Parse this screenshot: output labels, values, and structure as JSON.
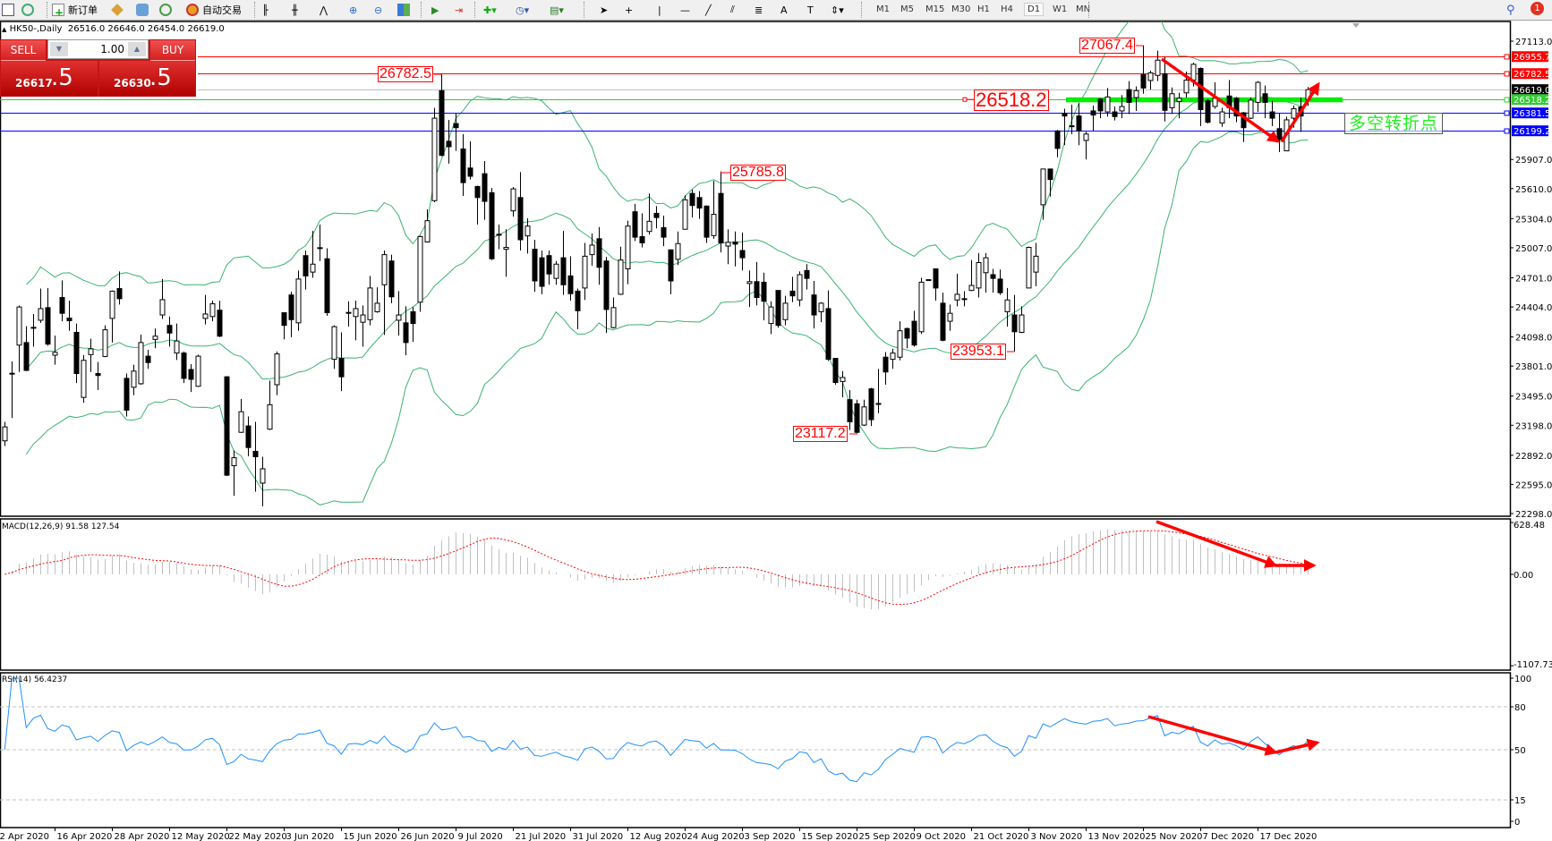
{
  "toolbar": {
    "new_order": "新订单",
    "auto_trading": "自动交易",
    "timeframes": [
      "M1",
      "M5",
      "M15",
      "M30",
      "H1",
      "H4",
      "D1",
      "W1",
      "MN"
    ],
    "active_timeframe": "D1",
    "notification_count": "1"
  },
  "chart": {
    "symbol": "HK50-,Daily",
    "ohlc": "26516.0 26646.0 26454.0 26619.0"
  },
  "trade_panel": {
    "sell_label": "SELL",
    "buy_label": "BUY",
    "lot": "1.00",
    "sell_price_main": "26617",
    "sell_price_frac": ".5",
    "buy_price_main": "26630",
    "buy_price_frac": ".5"
  },
  "annotation_text": "多空转折点",
  "colors": {
    "bull": "#ffffff",
    "bear": "#000000",
    "bollinger": "#3cb371",
    "macd_hist": "#c0c0c0",
    "macd_signal": "#ff0000",
    "rsi": "#1e90ff",
    "arrow": "#ff0000",
    "panel": "#c41414"
  },
  "chart_data": {
    "type": "candlestick",
    "price_range": [
      22298,
      27113
    ],
    "price_ticks": [
      "27113.0",
      "25907.0",
      "25610.0",
      "25304.0",
      "25007.0",
      "24701.0",
      "24404.0",
      "24098.0",
      "23801.0",
      "23495.0",
      "23198.0",
      "22892.0",
      "22595.0",
      "22298.0"
    ],
    "dates": [
      "2 Apr 2020",
      "16 Apr 2020",
      "28 Apr 2020",
      "12 May 2020",
      "22 May 2020",
      "3 Jun 2020",
      "15 Jun 2020",
      "26 Jun 2020",
      "9 Jul 2020",
      "21 Jul 2020",
      "31 Jul 2020",
      "12 Aug 2020",
      "24 Aug 2020",
      "3 Sep 2020",
      "15 Sep 2020",
      "25 Sep 2020",
      "9 Oct 2020",
      "21 Oct 2020",
      "3 Nov 2020",
      "13 Nov 2020",
      "25 Nov 2020",
      "7 Dec 2020",
      "17 Dec 2020"
    ],
    "indicator_bollinger": {
      "period": 20,
      "deviation": 2
    },
    "horizontal_lines": [
      {
        "price": 26955.7,
        "text": "26955.7",
        "color": "#ff0000"
      },
      {
        "price": 26782.5,
        "text": "26782.5",
        "color": "#ff0000"
      },
      {
        "price": 26619.0,
        "text": "26619.0",
        "color": "#000000"
      },
      {
        "price": 26518.2,
        "text": "26518.2",
        "color": "#33cc33"
      },
      {
        "price": 26381.5,
        "text": "26381.5",
        "color": "#0000ff"
      },
      {
        "price": 26199.2,
        "text": "26199.2",
        "color": "#0000ff"
      }
    ],
    "price_labels": [
      "27067.4",
      "26782.5",
      "26518.2",
      "25785.8",
      "23117.2",
      "23953.1"
    ],
    "candles": [
      [
        23039,
        23233,
        22987,
        23181
      ],
      [
        23722,
        23848,
        23271,
        23728
      ],
      [
        24015,
        24419,
        23741,
        24403
      ],
      [
        24041,
        24209,
        23750,
        23757
      ],
      [
        24190,
        24332,
        23999,
        24196
      ],
      [
        24268,
        24591,
        24242,
        24387
      ],
      [
        24397,
        24597,
        24009,
        24025
      ],
      [
        23912,
        24112,
        23815,
        23941
      ],
      [
        24500,
        24675,
        24258,
        24339
      ],
      [
        24290,
        24468,
        24161,
        24264
      ],
      [
        24145,
        24235,
        23628,
        23725
      ],
      [
        23482,
        23912,
        23427,
        23860
      ],
      [
        23918,
        24080,
        23741,
        23977
      ],
      [
        23725,
        23844,
        23556,
        23705
      ],
      [
        23899,
        24216,
        23892,
        24171
      ],
      [
        24287,
        24572,
        24041,
        24565
      ],
      [
        24591,
        24766,
        24429,
        24488
      ],
      [
        23676,
        23725,
        23288,
        23352
      ],
      [
        23585,
        23815,
        23504,
        23750
      ],
      [
        23621,
        24122,
        23611,
        24041
      ],
      [
        23902,
        23967,
        23773,
        23837
      ],
      [
        24073,
        24184,
        23983,
        24106
      ],
      [
        24322,
        24688,
        24281,
        24478
      ],
      [
        24216,
        24306,
        23999,
        24138
      ],
      [
        23934,
        24235,
        23863,
        24057
      ],
      [
        23934,
        23950,
        23628,
        23676
      ],
      [
        23766,
        23821,
        23537,
        23666
      ],
      [
        23595,
        23918,
        23588,
        23902
      ],
      [
        24287,
        24526,
        24226,
        24332
      ],
      [
        24306,
        24468,
        24258,
        24436
      ],
      [
        24371,
        24468,
        24096,
        24106
      ],
      [
        23692,
        23699,
        22680,
        22689
      ],
      [
        22786,
        22942,
        22479,
        22867
      ],
      [
        23126,
        23466,
        23120,
        23336
      ],
      [
        23191,
        23288,
        22883,
        22971
      ],
      [
        22932,
        23233,
        22521,
        22877
      ],
      [
        22608,
        22877,
        22372,
        22754
      ],
      [
        23158,
        23653,
        23149,
        23407
      ],
      [
        23611,
        23950,
        23504,
        23925
      ],
      [
        24345,
        24345,
        24073,
        24216
      ],
      [
        24526,
        24559,
        24096,
        24274
      ],
      [
        24242,
        24775,
        24161,
        24688
      ],
      [
        24927,
        24979,
        24581,
        24720
      ],
      [
        24759,
        25179,
        24701,
        24840
      ],
      [
        25000,
        25244,
        24872,
        25008
      ],
      [
        24895,
        25002,
        24313,
        24345
      ],
      [
        23870,
        24216,
        23773,
        24203
      ],
      [
        23880,
        24145,
        23546,
        23692
      ],
      [
        24342,
        24462,
        24203,
        24348
      ],
      [
        24306,
        24468,
        24064,
        24387
      ],
      [
        24248,
        24419,
        23999,
        24322
      ],
      [
        24274,
        24720,
        24216,
        24597
      ],
      [
        24355,
        24604,
        24345,
        24442
      ],
      [
        24630,
        24979,
        24119,
        24937
      ],
      [
        24872,
        24937,
        24442,
        24507
      ],
      [
        24268,
        24565,
        24112,
        24322
      ],
      [
        24242,
        24410,
        23912,
        24041
      ],
      [
        24355,
        24403,
        24048,
        24235
      ],
      [
        24452,
        25131,
        24355,
        25121
      ],
      [
        25066,
        25399,
        25060,
        25283
      ],
      [
        25487,
        26434,
        25471,
        26328
      ],
      [
        26609,
        26782.5,
        25940,
        25949
      ],
      [
        26092,
        26311,
        25865,
        26037
      ],
      [
        26273,
        26376,
        25995,
        26231
      ],
      [
        26014,
        26166,
        25535,
        25671
      ],
      [
        25820,
        26092,
        25703,
        25736
      ],
      [
        25632,
        25639,
        25244,
        25519
      ],
      [
        25762,
        25891,
        25293,
        25480
      ],
      [
        25568,
        25616,
        24882,
        24895
      ],
      [
        25138,
        25244,
        24992,
        25144
      ],
      [
        24992,
        25196,
        24711,
        25011
      ],
      [
        25383,
        25626,
        25325,
        25607
      ],
      [
        25519,
        25778,
        24979,
        25089
      ],
      [
        25128,
        25309,
        24947,
        25228
      ],
      [
        24992,
        25089,
        24559,
        24669
      ],
      [
        24905,
        24979,
        24533,
        24614
      ],
      [
        24927,
        24979,
        24630,
        24740
      ],
      [
        24695,
        24872,
        24630,
        24840
      ],
      [
        24905,
        25179,
        24526,
        24630
      ],
      [
        24720,
        24921,
        24468,
        24539
      ],
      [
        24565,
        24591,
        24177,
        24365
      ],
      [
        24597,
        25057,
        24475,
        24921
      ],
      [
        24937,
        25154,
        24824,
        25034
      ],
      [
        25099,
        25218,
        24630,
        24808
      ],
      [
        24872,
        24914,
        24138,
        24378
      ],
      [
        24193,
        24500,
        24184,
        24397
      ],
      [
        24533,
        25018,
        24526,
        24882
      ],
      [
        24792,
        25283,
        24636,
        25228
      ],
      [
        25374,
        25454,
        25076,
        25115
      ],
      [
        25121,
        25358,
        25011,
        25057
      ],
      [
        25173,
        25561,
        25141,
        25277
      ],
      [
        25358,
        25432,
        25205,
        25315
      ],
      [
        25212,
        25335,
        25024,
        25115
      ],
      [
        24986,
        24986,
        24533,
        24669
      ],
      [
        24889,
        25173,
        24830,
        25050
      ],
      [
        25196,
        25542,
        25193,
        25496
      ],
      [
        25561,
        25600,
        25315,
        25438
      ],
      [
        25519,
        25584,
        25302,
        25412
      ],
      [
        25432,
        25438,
        25057,
        25115
      ],
      [
        25131,
        25690,
        25099,
        25348
      ],
      [
        25561,
        25785.8,
        24960,
        25057
      ],
      [
        25024,
        25196,
        24840,
        25063
      ],
      [
        25066,
        25173,
        24817,
        25044
      ],
      [
        24979,
        25163,
        24775,
        24905
      ],
      [
        24643,
        24775,
        24403,
        24662
      ],
      [
        24662,
        24863,
        24419,
        24500
      ],
      [
        24656,
        24753,
        24268,
        24462
      ],
      [
        24235,
        24462,
        24128,
        24403
      ],
      [
        24572,
        24572,
        24193,
        24216
      ],
      [
        24274,
        24517,
        24216,
        24442
      ],
      [
        24565,
        24711,
        24452,
        24517
      ],
      [
        24475,
        24766,
        24410,
        24733
      ],
      [
        24775,
        24840,
        24581,
        24695
      ],
      [
        24526,
        24669,
        24184,
        24322
      ],
      [
        24355,
        24452,
        24248,
        24442
      ],
      [
        24387,
        24572,
        23854,
        23870
      ],
      [
        23880,
        23880,
        23611,
        23634
      ],
      [
        23644,
        23750,
        23482,
        23685
      ],
      [
        23459,
        23556,
        23149,
        23233
      ],
      [
        23417,
        23459,
        23117.2,
        23126
      ],
      [
        23200,
        23459,
        23191,
        23385
      ],
      [
        23569,
        23579,
        23191,
        23255
      ],
      [
        23414,
        23773,
        23320,
        23420
      ],
      [
        23892,
        23944,
        23611,
        23741
      ],
      [
        23870,
        23977,
        23773,
        23934
      ],
      [
        23892,
        24258,
        23860,
        24161
      ],
      [
        24184,
        24193,
        23983,
        24086
      ],
      [
        24258,
        24365,
        23999,
        24015
      ],
      [
        24151,
        24701,
        24128,
        24656
      ],
      [
        24676,
        24682,
        24676,
        24682
      ],
      [
        24792,
        24792,
        24468,
        24597
      ],
      [
        24442,
        24549,
        24054,
        24064
      ],
      [
        24258,
        24429,
        24161,
        24339
      ],
      [
        24475,
        24743,
        24410,
        24533
      ],
      [
        24482,
        24565,
        24410,
        24488
      ],
      [
        24572,
        24882,
        24565,
        24623
      ],
      [
        24597,
        24953,
        24500,
        24856
      ],
      [
        24753,
        24953,
        24549,
        24905
      ],
      [
        24733,
        24792,
        24549,
        24695
      ],
      [
        24688,
        24785,
        24526,
        24549
      ],
      [
        24355,
        24597,
        24203,
        24475
      ],
      [
        24322,
        24526,
        23953.1,
        24151
      ],
      [
        24145,
        24410,
        24138,
        24322
      ],
      [
        24597,
        25018,
        24597,
        25011
      ],
      [
        24759,
        25057,
        24614,
        24921
      ],
      [
        25445,
        25810,
        25293,
        25810
      ],
      [
        25810,
        25810,
        25529,
        25703
      ],
      [
        26198,
        26208,
        25930,
        26020
      ],
      [
        26376,
        26425,
        26053,
        26350
      ],
      [
        26244,
        26467,
        26166,
        26250
      ],
      [
        26350,
        26480,
        26053,
        26198
      ],
      [
        26101,
        26189,
        25907,
        26166
      ],
      [
        26402,
        26457,
        26198,
        26360
      ],
      [
        26522,
        26531,
        26328,
        26402
      ],
      [
        26392,
        26635,
        26344,
        26544
      ],
      [
        26392,
        26447,
        26305,
        26344
      ],
      [
        26402,
        26564,
        26328,
        26447
      ],
      [
        26619,
        26706,
        26370,
        26489
      ],
      [
        26538,
        26651,
        26402,
        26609
      ],
      [
        26771,
        27067.4,
        26577,
        26635
      ],
      [
        26712,
        26813,
        26619,
        26790
      ],
      [
        26764,
        27016,
        26706,
        26919
      ],
      [
        26780,
        26952,
        26295,
        26408
      ],
      [
        26434,
        26641,
        26370,
        26577
      ],
      [
        26499,
        26586,
        26328,
        26531
      ],
      [
        26586,
        26803,
        26538,
        26716
      ],
      [
        26716,
        26894,
        26651,
        26877
      ],
      [
        26835,
        26845,
        26247,
        26415
      ],
      [
        26506,
        26522,
        26273,
        26286
      ],
      [
        26447,
        26693,
        26425,
        26531
      ],
      [
        26279,
        26434,
        26240,
        26392
      ],
      [
        26554,
        26716,
        26328,
        26434
      ],
      [
        26531,
        26544,
        26286,
        26350
      ],
      [
        26383,
        26392,
        26085,
        26231
      ],
      [
        26328,
        26538,
        26320,
        26512
      ],
      [
        26489,
        26706,
        26392,
        26693
      ],
      [
        26577,
        26661,
        26328,
        26489
      ],
      [
        26392,
        26506,
        26247,
        26328
      ],
      [
        26221,
        26376,
        25982,
        26111
      ],
      [
        25995,
        26344,
        25995,
        26311
      ],
      [
        26328,
        26457,
        26231,
        26425
      ],
      [
        26441,
        26538,
        26189,
        26350
      ],
      [
        26516,
        26646,
        26454,
        26619
      ]
    ],
    "macd": {
      "label": "MACD(12,26,9) 91.58 127.54",
      "range": [
        -1107.73,
        628.48
      ],
      "ticks": [
        "628.48",
        "0.00",
        "-1107.73"
      ]
    },
    "rsi": {
      "label": "RSI(14) 56.4237",
      "range": [
        0,
        100
      ],
      "levels": [
        80,
        50,
        15
      ],
      "ticks": [
        "100",
        "80",
        "50",
        "15",
        "0"
      ]
    }
  }
}
